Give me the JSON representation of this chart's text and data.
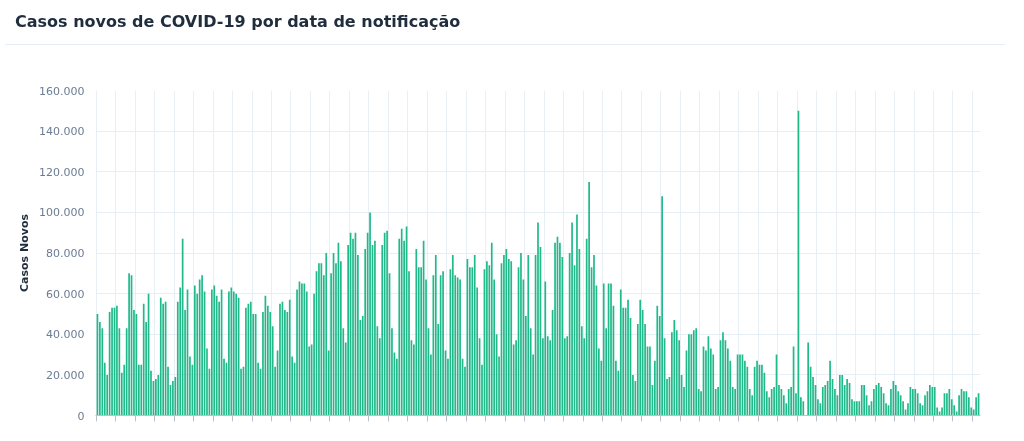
{
  "chart_data": {
    "type": "bar",
    "title": "Casos novos de COVID-19 por data de notificação",
    "ylabel": "Casos Novos",
    "categories": [
      null,
      null,
      null,
      null,
      null,
      null,
      null,
      null,
      null,
      null,
      null,
      null,
      null,
      null,
      null,
      null,
      null,
      null,
      null,
      null,
      null,
      null,
      null,
      null,
      null,
      null,
      null,
      null,
      null,
      null,
      null,
      null,
      null,
      null,
      null,
      null,
      null,
      null,
      null,
      null,
      null,
      null,
      null,
      null,
      null,
      null,
      null,
      null,
      null,
      null,
      null,
      null,
      null,
      null,
      null,
      null,
      null,
      null,
      null,
      null,
      null,
      null,
      null,
      null,
      null,
      null,
      null,
      null,
      null,
      null,
      null,
      null,
      null,
      null,
      null,
      null,
      null,
      null,
      null,
      null,
      null,
      null,
      null,
      null,
      null,
      null,
      null,
      null,
      null,
      null,
      null,
      null,
      null,
      null,
      null,
      null,
      null,
      null,
      null,
      null,
      null,
      null,
      null,
      null,
      null,
      null,
      null,
      null,
      null,
      null,
      null,
      null,
      null,
      null,
      null,
      null,
      null,
      null,
      null,
      null,
      null,
      null,
      null,
      null,
      null,
      null,
      null,
      null,
      null,
      null,
      null,
      null,
      null,
      null,
      null,
      null,
      null,
      null,
      null,
      null,
      null,
      null,
      null,
      null,
      null,
      null,
      null,
      null,
      null,
      null,
      null,
      null,
      null,
      null,
      null,
      null,
      null,
      null,
      null,
      null,
      null,
      null,
      null,
      null,
      null,
      null,
      null,
      null,
      null,
      null,
      null,
      null,
      null,
      null,
      null,
      null,
      null,
      null,
      null,
      null,
      null,
      null,
      null,
      null,
      null,
      null,
      null,
      null,
      null,
      null,
      null,
      null,
      null,
      null,
      null,
      null,
      null,
      null,
      null,
      null,
      null,
      null,
      null,
      null,
      null,
      null,
      null,
      null,
      null,
      null,
      null,
      null,
      null,
      null,
      null,
      null,
      null,
      null,
      null,
      null,
      null,
      null,
      null,
      null,
      null,
      null,
      null,
      null,
      null,
      null,
      null,
      null,
      null,
      null,
      null,
      null,
      null,
      null,
      null,
      null,
      null,
      null,
      null,
      null,
      null,
      null,
      null,
      null,
      null,
      null,
      null,
      null,
      null,
      null,
      null,
      null,
      null,
      null,
      null,
      null,
      null,
      null,
      null,
      null,
      null,
      null,
      null,
      null,
      null,
      null,
      null,
      null,
      null,
      null,
      null,
      null,
      null,
      null,
      null,
      null,
      null,
      null,
      null,
      null,
      null,
      null,
      null,
      null,
      null,
      null,
      null,
      null,
      null,
      null,
      null,
      null,
      null,
      null,
      null,
      null,
      null,
      null,
      null,
      null,
      null,
      null,
      null,
      null,
      null,
      null,
      null,
      null,
      null,
      null,
      null,
      null,
      null,
      null,
      null,
      null,
      null,
      null,
      null,
      null,
      null,
      null,
      null,
      null,
      null,
      null,
      null,
      null,
      null,
      null,
      null,
      null,
      null,
      null,
      null,
      null,
      null,
      null,
      null,
      null,
      null,
      null,
      null,
      null,
      null,
      null,
      null,
      null,
      null,
      null,
      null,
      null,
      null,
      null,
      null,
      null,
      null,
      null,
      null
    ],
    "values": [
      50000,
      46000,
      43000,
      26000,
      20000,
      51000,
      53000,
      53000,
      54000,
      43000,
      21000,
      25000,
      43000,
      70000,
      69000,
      52000,
      50000,
      25000,
      25000,
      55000,
      46000,
      60000,
      22000,
      17000,
      18000,
      20000,
      58000,
      55000,
      56000,
      24000,
      15000,
      17000,
      19000,
      56000,
      63000,
      87000,
      52000,
      62000,
      29000,
      25000,
      64000,
      60000,
      67000,
      69000,
      61000,
      33000,
      23000,
      62000,
      64000,
      59000,
      56000,
      62000,
      28000,
      26000,
      61000,
      63000,
      61000,
      60000,
      58000,
      23000,
      24000,
      53000,
      55000,
      56000,
      50000,
      50000,
      26000,
      23000,
      51000,
      59000,
      54000,
      51000,
      44000,
      24000,
      32000,
      55000,
      56000,
      52000,
      51000,
      57000,
      29000,
      26000,
      62000,
      66000,
      65000,
      65000,
      61000,
      34000,
      35000,
      60000,
      71000,
      75000,
      75000,
      69000,
      80000,
      32000,
      70000,
      80000,
      75000,
      85000,
      76000,
      43000,
      36000,
      84000,
      90000,
      87000,
      90000,
      79000,
      47000,
      49000,
      82000,
      90000,
      100000,
      84000,
      86000,
      44000,
      38000,
      84000,
      90000,
      91000,
      70000,
      43000,
      31000,
      28000,
      87000,
      92000,
      86000,
      93000,
      71000,
      37000,
      35000,
      82000,
      73000,
      73000,
      86000,
      67000,
      43000,
      30000,
      69000,
      79000,
      45000,
      69000,
      71000,
      32000,
      28000,
      72000,
      79000,
      69000,
      68000,
      67000,
      28000,
      24000,
      77000,
      73000,
      73000,
      79000,
      63000,
      38000,
      25000,
      72000,
      76000,
      74000,
      85000,
      67000,
      40000,
      29000,
      75000,
      79000,
      82000,
      77000,
      76000,
      35000,
      37000,
      73000,
      80000,
      67000,
      49000,
      79000,
      43000,
      30000,
      79000,
      95000,
      83000,
      38000,
      66000,
      39000,
      37000,
      52000,
      85000,
      88000,
      85000,
      78000,
      38000,
      39000,
      80000,
      95000,
      74000,
      99000,
      82000,
      44000,
      38000,
      87000,
      115000,
      73000,
      79000,
      64000,
      33000,
      27000,
      65000,
      43000,
      65000,
      65000,
      54000,
      27000,
      22000,
      62000,
      53000,
      53000,
      57000,
      48000,
      20000,
      17000,
      45000,
      57000,
      52000,
      45000,
      34000,
      34000,
      15000,
      27000,
      54000,
      49000,
      108000,
      38000,
      18000,
      19000,
      41000,
      47000,
      42000,
      37000,
      20000,
      14000,
      32000,
      40000,
      40000,
      42000,
      43000,
      13000,
      12000,
      34000,
      32000,
      39000,
      33000,
      30000,
      13000,
      14000,
      37000,
      41000,
      37000,
      33000,
      27000,
      14000,
      13000,
      30000,
      30000,
      30000,
      27000,
      24000,
      13000,
      10000,
      24000,
      27000,
      25000,
      25000,
      21000,
      12000,
      9000,
      13000,
      14000,
      30000,
      15000,
      13000,
      10000,
      6000,
      13000,
      14000,
      34000,
      11000,
      150000,
      9000,
      7000,
      0,
      36000,
      24000,
      19000,
      15000,
      8000,
      6000,
      14000,
      15000,
      17000,
      27000,
      18000,
      13000,
      10000,
      20000,
      20000,
      15000,
      18000,
      16000,
      8000,
      7000,
      7000,
      7000,
      15000,
      15000,
      10000,
      5000,
      7000,
      13000,
      15000,
      16000,
      14000,
      11000,
      6000,
      5000,
      13000,
      17000,
      15000,
      12000,
      10000,
      7000,
      3000,
      6000,
      14000,
      13000,
      13000,
      11000,
      6000,
      5000,
      10000,
      12000,
      15000,
      14000,
      14000,
      4000,
      2000,
      4000,
      11000,
      11000,
      13000,
      8000,
      5000,
      2000,
      10000,
      13000,
      12000,
      12000,
      9000,
      4000,
      3000,
      9000,
      11000
    ],
    "color": "#20b98a",
    "ylim": [
      0,
      160000
    ],
    "yticks": [
      {
        "value": 0,
        "label": "0"
      },
      {
        "value": 20000,
        "label": "20.000"
      },
      {
        "value": 40000,
        "label": "40.000"
      },
      {
        "value": 60000,
        "label": "60.000"
      },
      {
        "value": 80000,
        "label": "80.000"
      },
      {
        "value": 100000,
        "label": "100.000"
      },
      {
        "value": 120000,
        "label": "120.000"
      },
      {
        "value": 140000,
        "label": "140.000"
      },
      {
        "value": 160000,
        "label": "160.000"
      }
    ],
    "grid": true,
    "tick_labels": "y"
  }
}
